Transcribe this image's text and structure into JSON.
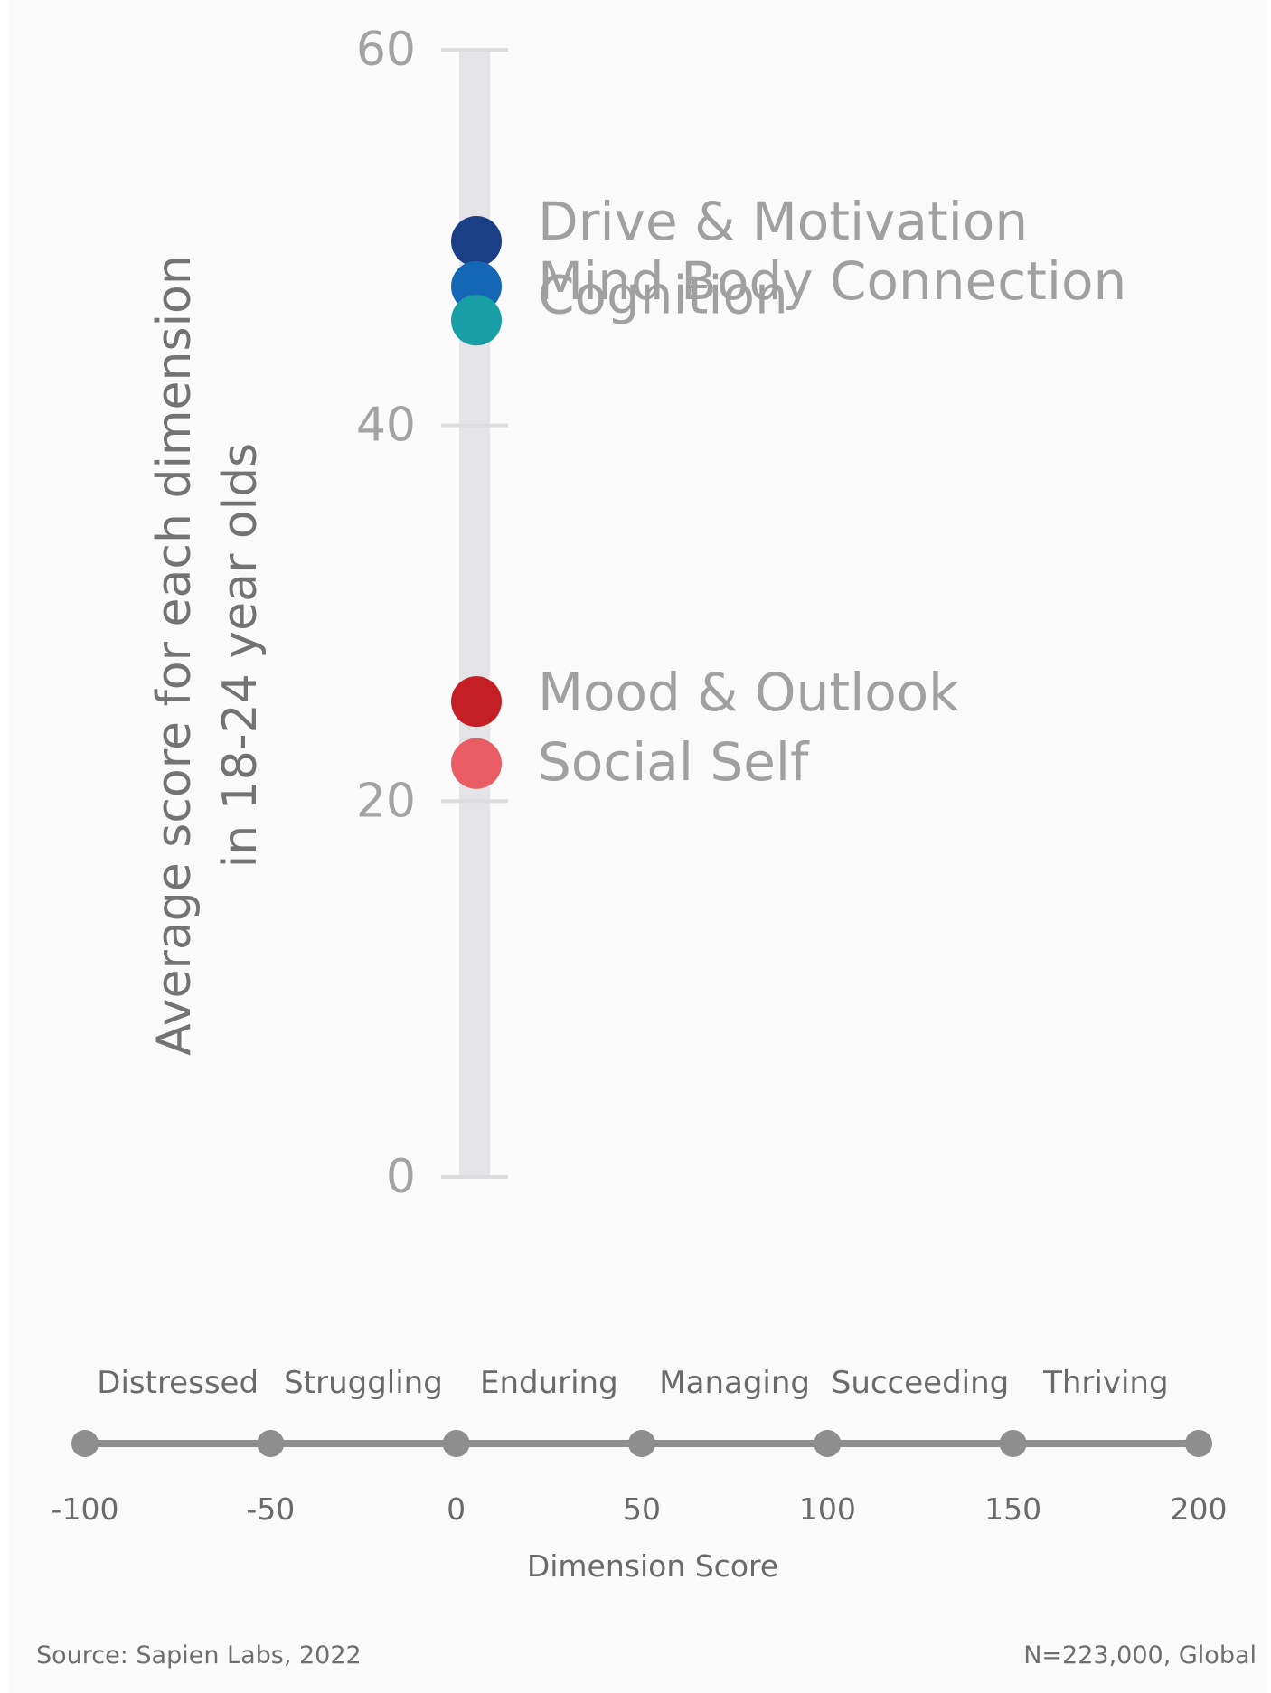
{
  "chart_data": {
    "type": "scatter",
    "ylabel_lines": [
      "Average score for each dimension",
      "in 18-24 year olds"
    ],
    "yticks": [
      0,
      20,
      40,
      60
    ],
    "ylim": [
      0,
      60
    ],
    "series": [
      {
        "name": "Drive & Motivation",
        "value": 49.8,
        "color": "#1b3f86"
      },
      {
        "name": "Mind Body Connection",
        "value": 47.4,
        "color": "#1467b4"
      },
      {
        "name": "Cognition",
        "value": 45.6,
        "color": "#1a9ea5"
      },
      {
        "name": "Mood & Outlook",
        "value": 25.3,
        "color": "#c41f25"
      },
      {
        "name": "Social Self",
        "value": 22.0,
        "color": "#e95c63"
      }
    ],
    "scale": {
      "xlabel": "Dimension Score",
      "ticks": [
        -100,
        -50,
        0,
        50,
        100,
        150,
        200
      ],
      "tick_labels": [
        "-100",
        "-50",
        "0",
        "50",
        "100",
        "150",
        "200"
      ],
      "categories": [
        "Distressed",
        "Struggling",
        "Enduring",
        "Managing",
        "Succeeding",
        "Thriving"
      ]
    }
  },
  "footer": {
    "source": "Source: Sapien Labs, 2022",
    "sample": "N=223,000, Global"
  }
}
